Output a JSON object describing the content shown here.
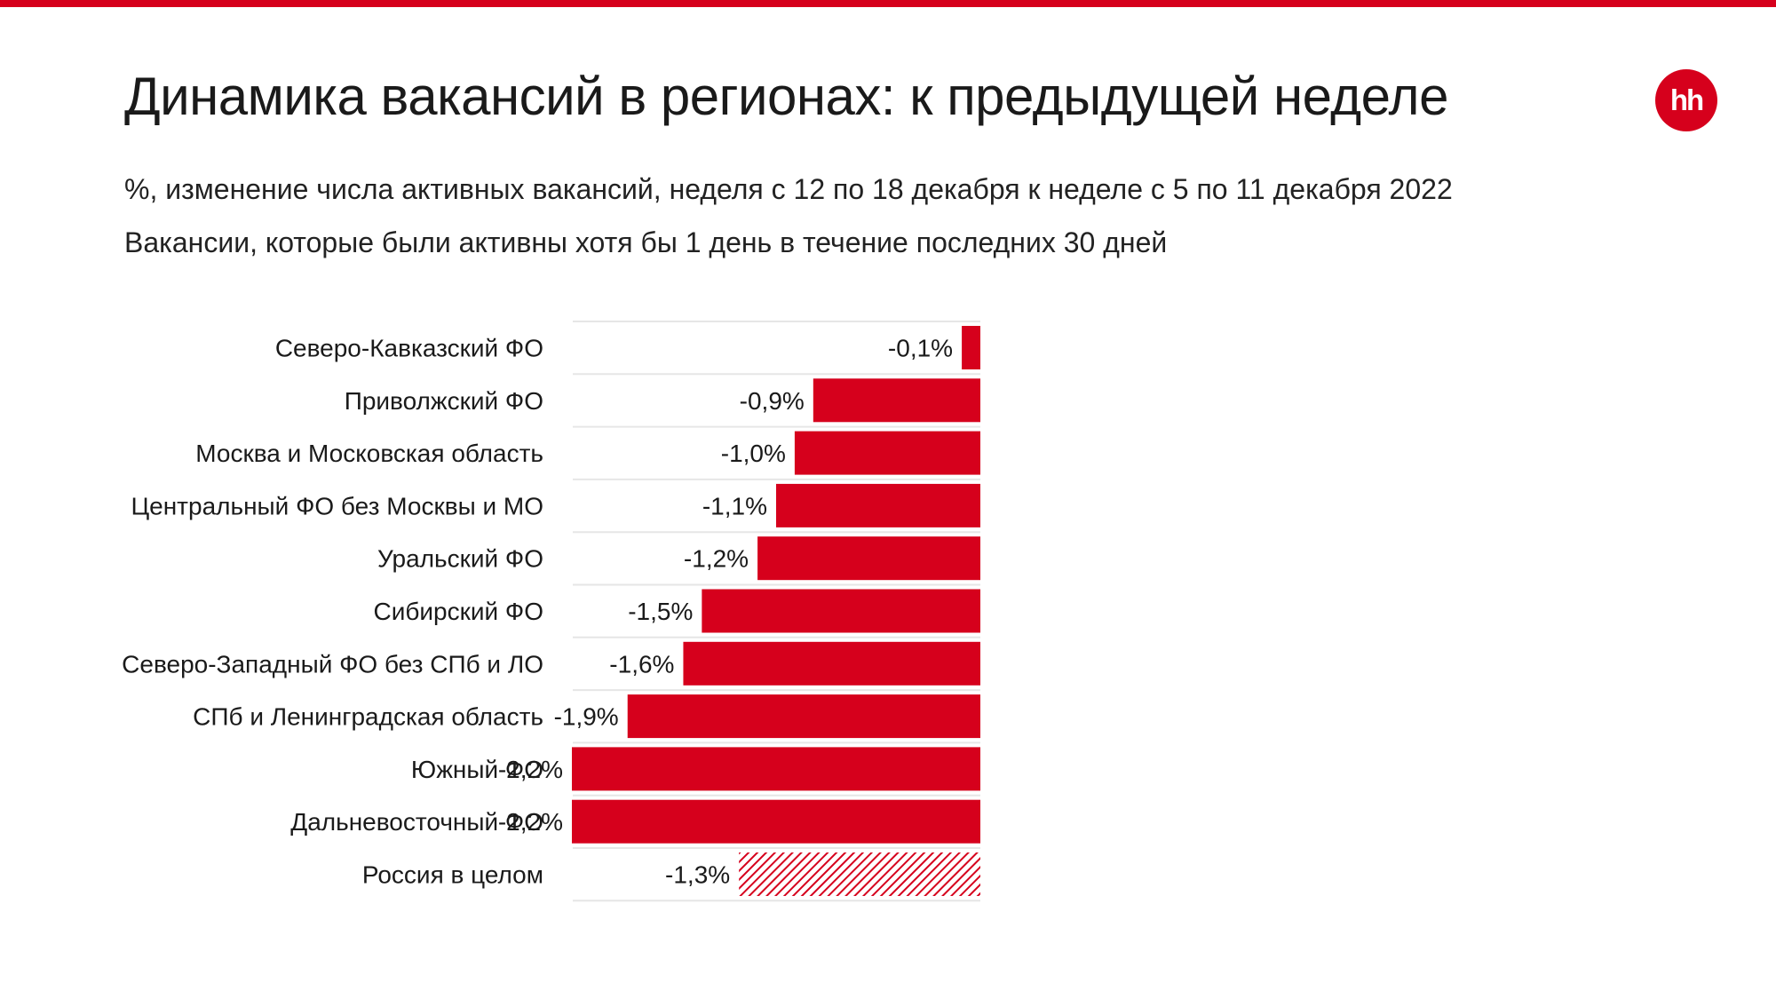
{
  "header": {
    "title": "Динамика вакансий в регионах: к предыдущей неделе",
    "subtitle_1": "%, изменение числа активных вакансий, неделя с 12 по 18 декабря к неделе с 5 по 11 декабря 2022",
    "subtitle_2": "Вакансии, которые были активны хотя бы 1 день в течение последних 30 дней",
    "logo_text": "hh"
  },
  "colors": {
    "accent": "#d6001c",
    "gridline": "#e6e6e6",
    "text": "#1a1a1a"
  },
  "chart_data": {
    "type": "bar",
    "orientation": "horizontal",
    "grid": false,
    "title": "",
    "xlabel": "",
    "ylabel": "",
    "xlim": [
      -2.2,
      0
    ],
    "categories": [
      "Северо-Кавказский ФО",
      "Приволжский ФО",
      "Москва и Московская область",
      "Центральный ФО без Москвы и МО",
      "Уральский ФО",
      "Сибирский ФО",
      "Северо-Западный ФО без СПб и ЛО",
      "СПб и Ленинградская область",
      "Южный ФО",
      "Дальневосточный ФО",
      "Россия в целом"
    ],
    "values": [
      -0.1,
      -0.9,
      -1.0,
      -1.1,
      -1.2,
      -1.5,
      -1.6,
      -1.9,
      -2.2,
      -2.2,
      -1.3
    ],
    "data_labels": [
      "-0,1%",
      "-0,9%",
      "-1,0%",
      "-1,1%",
      "-1,2%",
      "-1,5%",
      "-1,6%",
      "-1,9%",
      "-2,2%",
      "-2,2%",
      "-1,3%"
    ],
    "fill_styles": [
      "solid",
      "solid",
      "solid",
      "solid",
      "solid",
      "solid",
      "solid",
      "solid",
      "solid",
      "solid",
      "hatched"
    ]
  }
}
